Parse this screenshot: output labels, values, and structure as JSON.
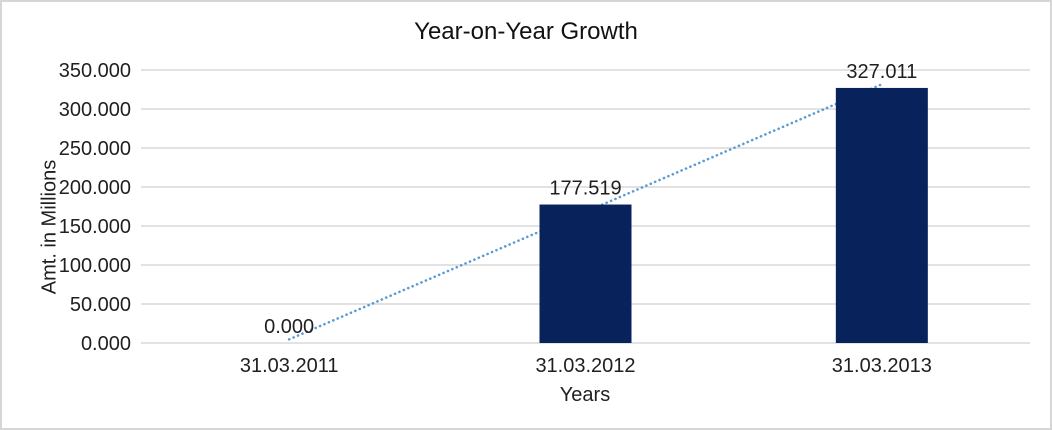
{
  "window": {
    "background": "#ffffff",
    "border_color": "#d6d6d6"
  },
  "chart_data": {
    "type": "bar",
    "title": "Year-on-Year Growth",
    "categories": [
      "31.03.2011",
      "31.03.2012",
      "31.03.2013"
    ],
    "values": [
      0,
      177.519,
      327.011
    ],
    "data_labels": [
      "0.000",
      "177.519",
      "327.011"
    ],
    "xlabel": "Years",
    "ylabel": "Amt. in Millions",
    "ylim": [
      0,
      350
    ],
    "ytick_step": 50,
    "ytick_labels": [
      "0.000",
      "50.000",
      "100.000",
      "150.000",
      "200.000",
      "250.000",
      "300.000",
      "350.000"
    ],
    "grid": true,
    "legend": false,
    "trendline": {
      "type": "linear",
      "style": "round-dot",
      "color": "#5b9bd5"
    },
    "colors": {
      "bar": "#08235c",
      "gridline": "#d9d9d9",
      "text": "#1f1f1f",
      "title": "#111111"
    }
  }
}
